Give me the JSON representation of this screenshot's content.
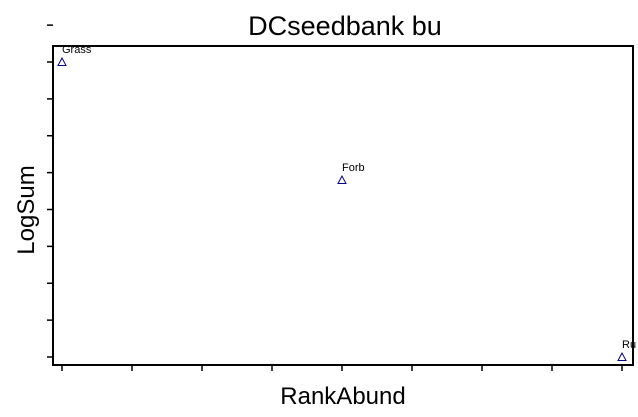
{
  "chart_data": {
    "type": "scatter",
    "title": "DCseedbank bu",
    "xlabel": "RankAbund",
    "ylabel": "LogSum",
    "x_ticks": [
      1,
      2,
      3,
      4,
      5,
      6,
      7,
      8,
      9
    ],
    "y_ticks": [
      0,
      1,
      2,
      3,
      4,
      5,
      6,
      7,
      8,
      9
    ],
    "xlim": [
      1,
      9
    ],
    "ylim": [
      0,
      8
    ],
    "marker": "triangle-open",
    "marker_color": "#00008b",
    "points": [
      {
        "label": "Grass",
        "x": 1,
        "y": 8
      },
      {
        "label": "Forb",
        "x": 5,
        "y": 4.8
      },
      {
        "label": "Ru",
        "x": 9,
        "y": 0
      }
    ]
  }
}
